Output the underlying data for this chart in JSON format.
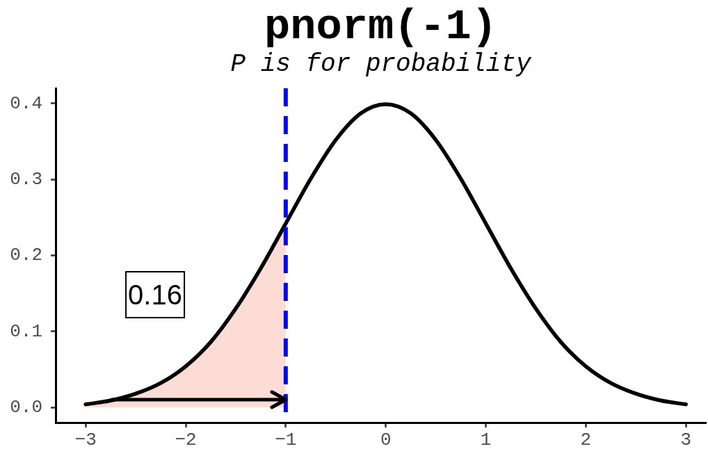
{
  "chart_data": {
    "type": "line",
    "title": "pnorm(-1)",
    "subtitle": "P is for probability",
    "series": [
      {
        "type": "area",
        "color": "#fddcd6",
        "x": [
          -3,
          -2.75,
          -2.5,
          -2.25,
          -2,
          -1.75,
          -1.5,
          -1.25,
          -1
        ],
        "values": [
          0.004,
          0.009,
          0.018,
          0.032,
          0.054,
          0.086,
          0.13,
          0.183,
          0.242
        ]
      },
      {
        "color": "#000000",
        "x": [
          -3,
          -2.75,
          -2.5,
          -2.25,
          -2,
          -1.75,
          -1.5,
          -1.25,
          -1,
          -0.75,
          -0.5,
          -0.25,
          0,
          0.25,
          0.5,
          0.75,
          1,
          1.25,
          1.5,
          1.75,
          2,
          2.25,
          2.5,
          2.75,
          3
        ],
        "values": [
          0.004,
          0.009,
          0.018,
          0.032,
          0.054,
          0.086,
          0.13,
          0.183,
          0.242,
          0.301,
          0.352,
          0.387,
          0.399,
          0.387,
          0.352,
          0.301,
          0.242,
          0.183,
          0.13,
          0.086,
          0.054,
          0.032,
          0.018,
          0.009,
          0.004
        ]
      }
    ],
    "xlim": [
      -3.3,
      3.2
    ],
    "ylim": [
      -0.02,
      0.42
    ],
    "xticks": [
      {
        "value": -3,
        "label": "−3"
      },
      {
        "value": -2,
        "label": "−2"
      },
      {
        "value": -1,
        "label": "−1"
      },
      0,
      1,
      2,
      3
    ],
    "yticks": [
      {
        "value": 0,
        "label": "0.0"
      },
      0.1,
      0.2,
      0.3,
      0.4
    ],
    "ref_lines": [
      {
        "axis": "x",
        "value": -1,
        "color": "#0000ff",
        "line_style": "dashed"
      }
    ],
    "annotations": [
      "0.16"
    ]
  }
}
